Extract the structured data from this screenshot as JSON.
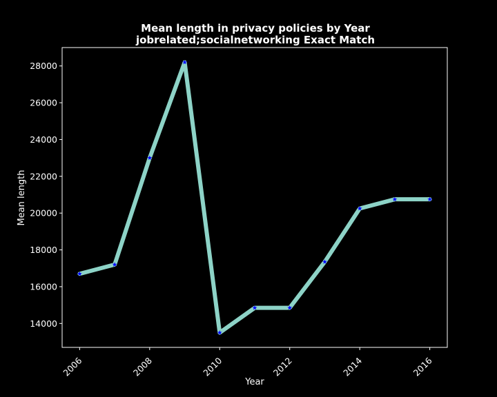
{
  "chart_data": {
    "type": "line",
    "title_line1": "Mean length in privacy policies by Year",
    "title_line2": "jobrelated;socialnetworking Exact Match",
    "xlabel": "Year",
    "ylabel": "Mean length",
    "x": [
      2006,
      2007,
      2008,
      2009,
      2010,
      2011,
      2012,
      2013,
      2014,
      2015,
      2016
    ],
    "series": [
      {
        "values": [
          16700,
          17200,
          23000,
          28200,
          13500,
          14850,
          14850,
          17350,
          20250,
          20750,
          20750
        ],
        "line_color": "#8dd3c7",
        "marker_color": "#0000ff",
        "marker": "star"
      }
    ],
    "xlim": [
      2005.5,
      2016.5
    ],
    "ylim": [
      12700,
      29000
    ],
    "xticks": [
      2006,
      2008,
      2010,
      2012,
      2014,
      2016
    ],
    "yticks": [
      14000,
      16000,
      18000,
      20000,
      22000,
      24000,
      26000,
      28000
    ],
    "grid": false,
    "background": "#000000",
    "foreground": "#ffffff"
  }
}
